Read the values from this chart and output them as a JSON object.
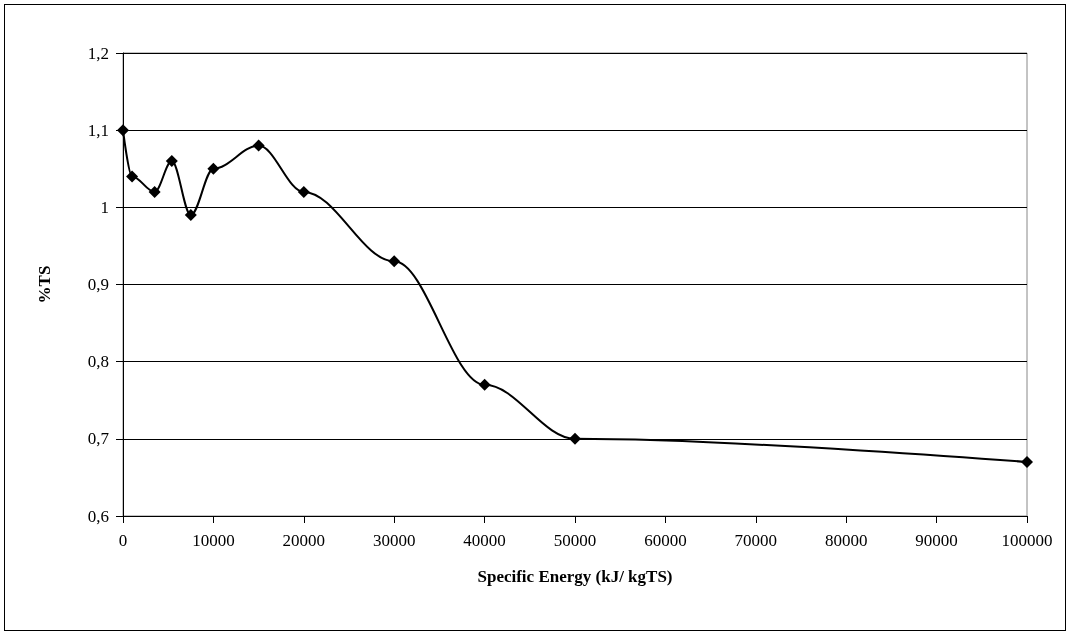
{
  "chart_data": {
    "type": "line",
    "xlabel": "Specific Energy (kJ/ kgTS)",
    "ylabel": "%TS",
    "x": [
      0,
      1000,
      3500,
      5400,
      7500,
      10000,
      15000,
      20000,
      30000,
      40000,
      50000,
      100000
    ],
    "series": [
      {
        "color": "#000000",
        "values": [
          1.1,
          1.04,
          1.02,
          1.06,
          0.99,
          1.05,
          1.08,
          1.02,
          0.93,
          0.77,
          0.7,
          0.67
        ]
      }
    ],
    "xlim": [
      0,
      100000
    ],
    "xticks": [
      0,
      10000,
      20000,
      30000,
      40000,
      50000,
      60000,
      70000,
      80000,
      90000,
      100000
    ],
    "ylim": [
      0.6,
      1.2
    ],
    "yticks": [
      {
        "value": 0.6,
        "label": "0,6"
      },
      {
        "value": 0.7,
        "label": "0,7"
      },
      {
        "value": 0.8,
        "label": "0,8"
      },
      {
        "value": 0.9,
        "label": "0,9"
      },
      {
        "value": 1,
        "label": "1"
      },
      {
        "value": 1.1,
        "label": "1,1"
      },
      {
        "value": 1.2,
        "label": "1,2"
      }
    ],
    "grid": "y",
    "marker": "diamond",
    "line_style": "solid"
  }
}
